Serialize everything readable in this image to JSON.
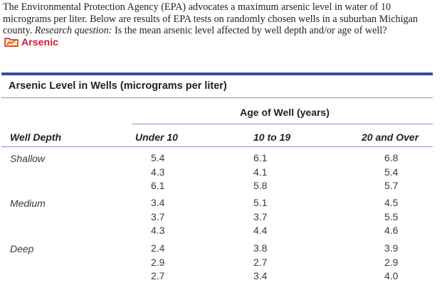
{
  "intro": {
    "text": "The Environmental Protection Agency (EPA) advocates a maximum arsenic level in water of 10 micrograms per liter. Below are results of EPA tests on randomly chosen wells in a suburban Michigan county.",
    "rq_label": "Research question:",
    "rq_text": "Is the mean arsenic level affected by well depth and/or age of well?",
    "data_file": "Arsenic"
  },
  "table": {
    "caption": "Arsenic Level in Wells (micrograms per liter)",
    "age_header": "Age of Well (years)",
    "row_header": "Well Depth",
    "columns": [
      "Under 10",
      "10 to 19",
      "20 and Over"
    ],
    "groups": [
      {
        "depth": "Shallow",
        "rows": [
          [
            "5.4",
            "6.1",
            "6.8"
          ],
          [
            "4.3",
            "4.1",
            "5.4"
          ],
          [
            "6.1",
            "5.8",
            "5.7"
          ]
        ]
      },
      {
        "depth": "Medium",
        "rows": [
          [
            "3.4",
            "5.1",
            "4.5"
          ],
          [
            "3.7",
            "3.7",
            "5.5"
          ],
          [
            "4.3",
            "4.4",
            "4.6"
          ]
        ]
      },
      {
        "depth": "Deep",
        "rows": [
          [
            "2.4",
            "3.8",
            "3.9"
          ],
          [
            "2.9",
            "2.7",
            "2.9"
          ],
          [
            "2.7",
            "3.4",
            "4.0"
          ]
        ]
      }
    ]
  },
  "icons": {
    "data_file": "folder-data-icon"
  },
  "colors": {
    "rule": "#3b4aa3",
    "data_link": "#c8202f"
  }
}
